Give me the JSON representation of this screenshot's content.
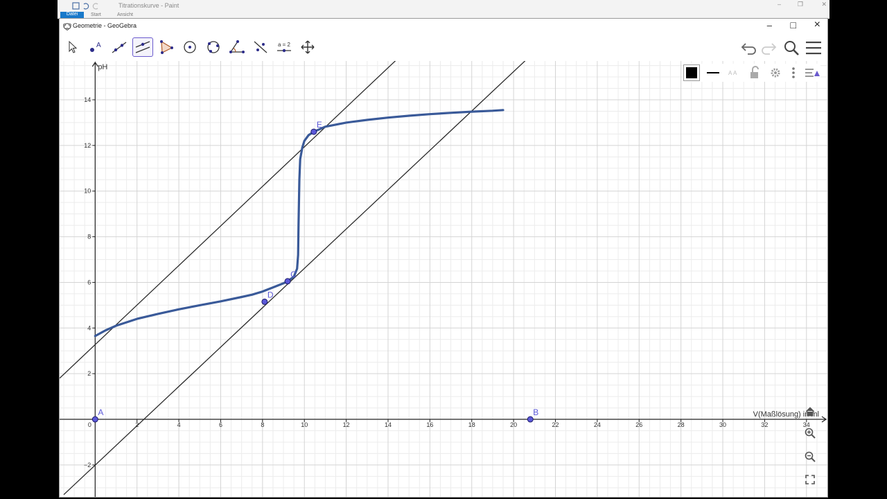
{
  "paint": {
    "title": "Titrationskurve - Paint",
    "tabs": [
      "Datei",
      "Start",
      "Ansicht"
    ]
  },
  "window": {
    "title": "Geometrie - GeoGebra",
    "controls": {
      "minimize": "–",
      "maximize": "□",
      "close": "×"
    }
  },
  "toolbar": {
    "tools": [
      {
        "name": "move-tool",
        "icon": "arrow-icon"
      },
      {
        "name": "point-tool",
        "icon": "point-icon"
      },
      {
        "name": "line-tool",
        "icon": "line-icon"
      },
      {
        "name": "parallel-line-tool",
        "icon": "parallel-line-icon",
        "selected": true
      },
      {
        "name": "polygon-tool",
        "icon": "triangle-icon"
      },
      {
        "name": "circle-tool",
        "icon": "circle-center-icon"
      },
      {
        "name": "circle-three-points-tool",
        "icon": "circle-points-icon"
      },
      {
        "name": "angle-tool",
        "icon": "angle-icon"
      },
      {
        "name": "reflect-tool",
        "icon": "reflect-icon"
      },
      {
        "name": "slider-tool",
        "icon": "slider-icon",
        "label": "a = 2"
      },
      {
        "name": "move-graphics-tool",
        "icon": "move-graphics-icon"
      }
    ]
  },
  "graph": {
    "y_axis_label": "pH",
    "x_axis_label": "V(Maßlösung) in ml",
    "x_ticks": [
      0,
      2,
      4,
      6,
      8,
      10,
      12,
      14,
      16,
      18,
      20,
      22,
      24,
      26,
      28,
      30,
      32,
      34
    ],
    "y_ticks": [
      -2,
      2,
      4,
      6,
      8,
      10,
      12,
      14
    ],
    "x_range": [
      -1.7,
      35
    ],
    "y_range": [
      -3.4,
      15.7
    ],
    "points": [
      {
        "label": "A",
        "x": 0,
        "y": 0
      },
      {
        "label": "B",
        "x": 20.8,
        "y": 0
      },
      {
        "label": "C",
        "x": 9.2,
        "y": 6.05
      },
      {
        "label": "D",
        "x": 8.1,
        "y": 5.15
      },
      {
        "label": "E",
        "x": 10.45,
        "y": 12.6
      }
    ],
    "lines": [
      {
        "name": "tangent-line-upper",
        "x": [
          -1.7,
          14.4
        ],
        "y": [
          1.8,
          15.75
        ]
      },
      {
        "name": "tangent-line-lower",
        "x": [
          -1.5,
          20.6
        ],
        "y": [
          -3.3,
          15.75
        ]
      }
    ],
    "curve": {
      "color": "#3a5a99",
      "x": [
        0,
        0.5,
        1,
        2,
        3,
        4,
        5,
        6,
        7,
        7.5,
        8,
        8.5,
        9,
        9.2,
        9.5,
        9.65,
        9.7,
        9.72,
        9.74,
        9.76,
        9.8,
        9.9,
        10.0,
        10.2,
        10.45,
        11,
        12,
        13,
        14,
        15,
        16,
        17,
        18,
        19,
        19.5
      ],
      "y": [
        3.65,
        3.9,
        4.1,
        4.4,
        4.62,
        4.82,
        5.0,
        5.17,
        5.36,
        5.46,
        5.6,
        5.78,
        5.96,
        6.05,
        6.25,
        6.6,
        7.2,
        8.5,
        9.5,
        10.5,
        11.4,
        11.9,
        12.2,
        12.45,
        12.6,
        12.82,
        13.0,
        13.12,
        13.22,
        13.3,
        13.37,
        13.43,
        13.48,
        13.52,
        13.55
      ]
    }
  }
}
